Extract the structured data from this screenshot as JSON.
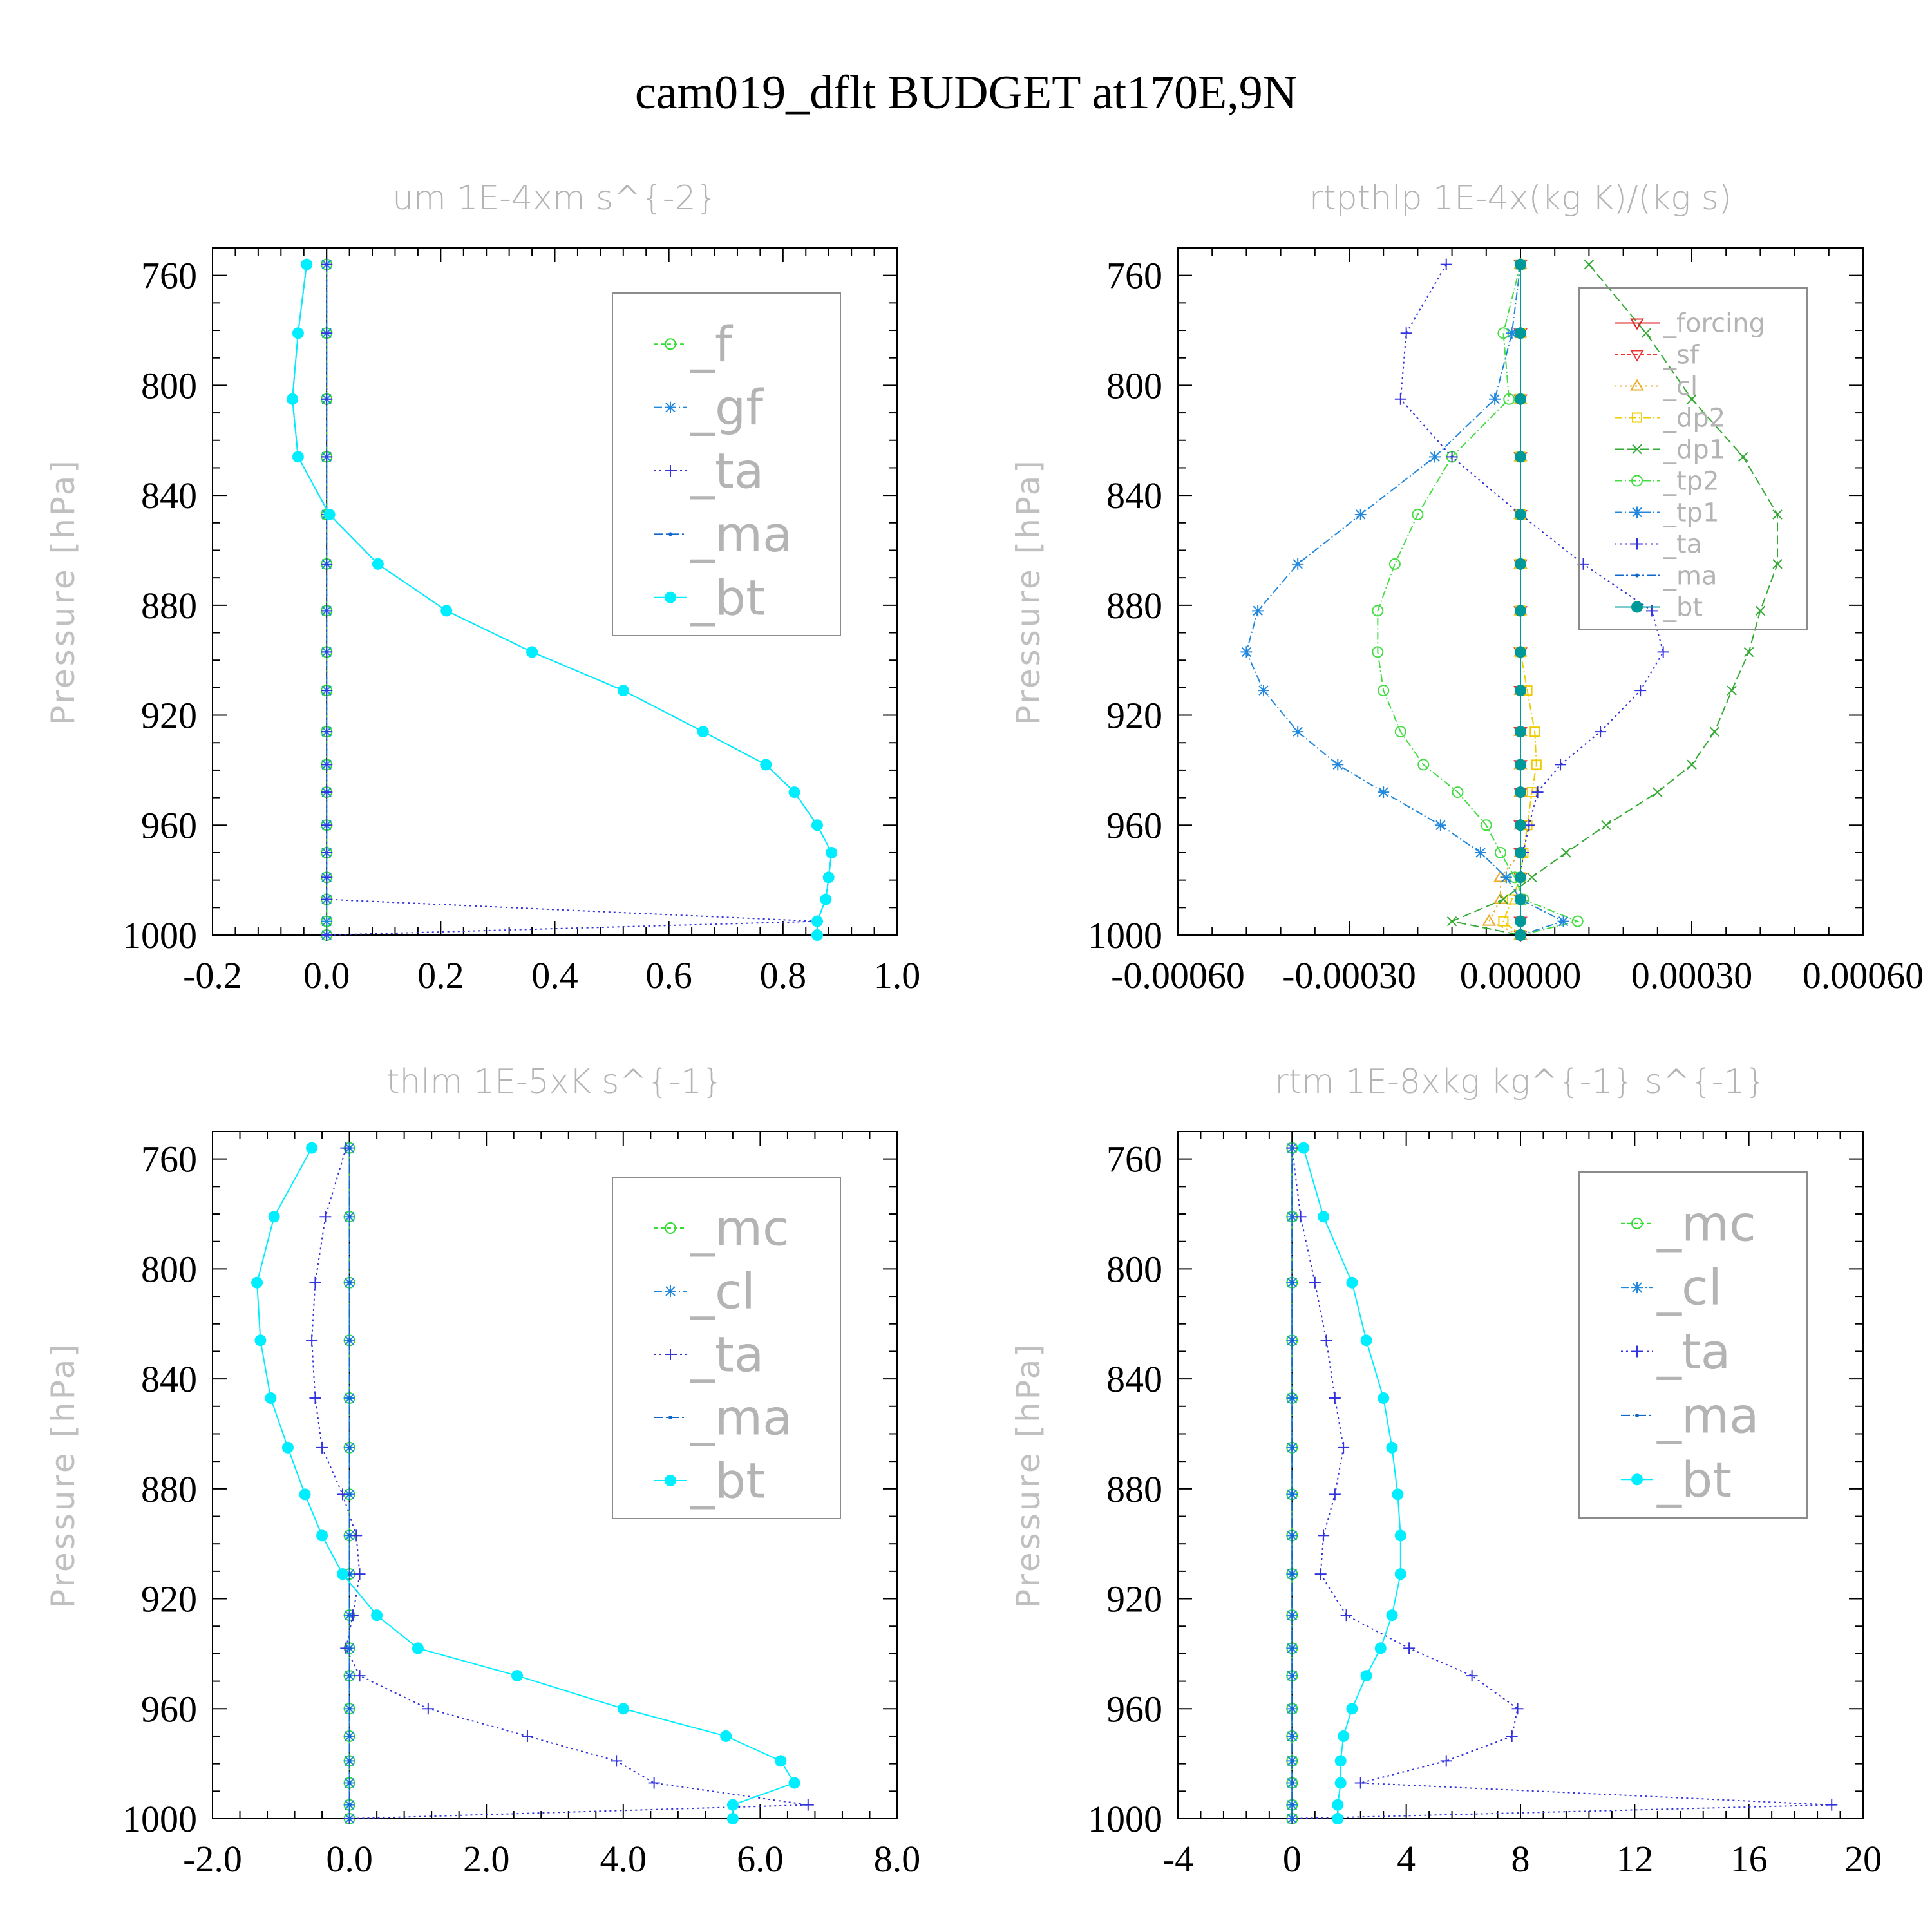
{
  "title": "cam019_dflt  BUDGET at170E,9N",
  "chart_data": [
    {
      "type": "line",
      "title": "um   1E-4xm s^{-2}",
      "ylabel": "Pressure [hPa]",
      "ylim": [
        1000,
        750
      ],
      "yticks": [
        760,
        800,
        840,
        880,
        920,
        960,
        1000
      ],
      "xlim": [
        -0.2,
        1.0
      ],
      "xticks": [
        -0.2,
        0.0,
        0.2,
        0.4,
        0.6,
        0.8,
        1.0
      ],
      "xtick_labels": [
        "-0.2",
        "0.0",
        "0.2",
        "0.4",
        "0.6",
        "0.8",
        "1.0"
      ],
      "grid": false,
      "legend_position": "upper-right",
      "legend_font": "large",
      "y": [
        756,
        781,
        805,
        826,
        847,
        865,
        882,
        897,
        911,
        926,
        938,
        948,
        960,
        970,
        979,
        987,
        995,
        1000
      ],
      "series": [
        {
          "name": "_f",
          "color": "#33dd33",
          "marker": "circle-open",
          "dash": "6,4",
          "values": [
            0,
            0,
            0,
            0,
            0,
            0,
            0,
            0,
            0,
            0,
            0,
            0,
            0,
            0,
            0,
            0,
            0,
            0
          ]
        },
        {
          "name": "_gf",
          "color": "#2288dd",
          "marker": "star",
          "dash": "12,4,2,4",
          "values": [
            0,
            0,
            0,
            0,
            0,
            0,
            0,
            0,
            0,
            0,
            0,
            0,
            0,
            0,
            0,
            0,
            0,
            0
          ]
        },
        {
          "name": "_ta",
          "color": "#3333dd",
          "marker": "plus",
          "dash": "3,5",
          "values": [
            0,
            0,
            0,
            0,
            0,
            0,
            0,
            0,
            0,
            0,
            0,
            0,
            0,
            0,
            0,
            0,
            0.86,
            0
          ]
        },
        {
          "name": "_ma",
          "color": "#1166cc",
          "marker": "dot",
          "dash": "14,4,3,4",
          "values": [
            -0.035,
            -0.05,
            -0.06,
            -0.05,
            0.005,
            0.09,
            0.21,
            0.36,
            0.52,
            0.66,
            0.77,
            0.82,
            0.86,
            0.885,
            0.88,
            0.875,
            0.86,
            0.86
          ]
        },
        {
          "name": "_bt",
          "color": "#00eeff",
          "marker": "dot-filled",
          "dash": "",
          "values": [
            -0.035,
            -0.05,
            -0.06,
            -0.05,
            0.005,
            0.09,
            0.21,
            0.36,
            0.52,
            0.66,
            0.77,
            0.82,
            0.86,
            0.885,
            0.88,
            0.875,
            0.86,
            0.86
          ]
        }
      ]
    },
    {
      "type": "line",
      "title": "rtpthlp   1E-4x(kg K)/(kg s)",
      "ylabel": "Pressure [hPa]",
      "ylim": [
        1000,
        750
      ],
      "yticks": [
        760,
        800,
        840,
        880,
        920,
        960,
        1000
      ],
      "xlim": [
        -0.0006,
        0.0006
      ],
      "xticks": [
        -0.0006,
        -0.0003,
        0.0,
        0.0003,
        0.0006
      ],
      "xtick_labels": [
        "-0.00060",
        "-0.00030",
        "0.00000",
        "0.00030",
        "0.00060"
      ],
      "grid": false,
      "legend_position": "upper-right",
      "legend_font": "small",
      "y": [
        756,
        781,
        805,
        826,
        847,
        865,
        882,
        897,
        911,
        926,
        938,
        948,
        960,
        970,
        979,
        987,
        995,
        1000
      ],
      "series": [
        {
          "name": "_forcing",
          "color": "#dd2222",
          "marker": "tri-down",
          "dash": "",
          "values": [
            0,
            0,
            0,
            0,
            0,
            0,
            0,
            0,
            0,
            0,
            0,
            0,
            0,
            0,
            0,
            0,
            0,
            0
          ]
        },
        {
          "name": "_sf",
          "color": "#ee3333",
          "marker": "tri-down",
          "dash": "6,4",
          "values": [
            0,
            0,
            0,
            0,
            0,
            0,
            0,
            0,
            0,
            0,
            0,
            0,
            0,
            0,
            0,
            0,
            0,
            0
          ]
        },
        {
          "name": "_cl",
          "color": "#eeaa22",
          "marker": "tri-up",
          "dash": "3,5",
          "values": [
            0,
            0,
            0,
            0,
            0,
            0,
            0,
            0,
            0,
            0,
            0,
            0,
            0,
            0,
            -3.5e-05,
            -3.5e-05,
            -5.5e-05,
            0
          ]
        },
        {
          "name": "_dp2",
          "color": "#eecc00",
          "marker": "square",
          "dash": "12,4,2,4",
          "values": [
            0,
            0,
            0,
            0,
            0,
            0,
            0,
            0,
            1.2e-05,
            2.5e-05,
            2.8e-05,
            2e-05,
            1.2e-05,
            5e-06,
            0,
            -1.5e-05,
            -3e-05,
            0
          ]
        },
        {
          "name": "_dp1",
          "color": "#33aa33",
          "marker": "x",
          "dash": "14,6",
          "values": [
            0.00012,
            0.00022,
            0.0003,
            0.00039,
            0.00045,
            0.00045,
            0.00042,
            0.0004,
            0.00037,
            0.00034,
            0.0003,
            0.00024,
            0.00015,
            8e-05,
            2e-05,
            -3e-05,
            -0.00012,
            0
          ]
        },
        {
          "name": "_tp2",
          "color": "#44dd44",
          "marker": "circle-open",
          "dash": "12,4,2,4",
          "values": [
            0,
            -3e-05,
            -2e-05,
            -0.00012,
            -0.00018,
            -0.00022,
            -0.00025,
            -0.00025,
            -0.00024,
            -0.00021,
            -0.00017,
            -0.00011,
            -6e-05,
            -3.5e-05,
            -1e-05,
            5e-06,
            0.0001,
            0
          ]
        },
        {
          "name": "_tp1",
          "color": "#2288dd",
          "marker": "star",
          "dash": "12,4,2,4",
          "values": [
            0,
            -1.5e-05,
            -4.5e-05,
            -0.00015,
            -0.00028,
            -0.00039,
            -0.00046,
            -0.00048,
            -0.00045,
            -0.00039,
            -0.00032,
            -0.00024,
            -0.00014,
            -7e-05,
            -2.5e-05,
            0,
            7.5e-05,
            0
          ]
        },
        {
          "name": "_ta",
          "color": "#3333dd",
          "marker": "plus",
          "dash": "3,5",
          "values": [
            -0.00013,
            -0.0002,
            -0.00021,
            -0.00012,
            0,
            0.00011,
            0.00023,
            0.00025,
            0.00021,
            0.00014,
            7e-05,
            3e-05,
            1.5e-05,
            5e-06,
            0,
            0,
            0,
            0
          ]
        },
        {
          "name": "_ma",
          "color": "#1166cc",
          "marker": "dot",
          "dash": "14,4,3,4",
          "values": [
            0,
            0,
            0,
            0,
            0,
            0,
            0,
            0,
            0,
            0,
            0,
            0,
            0,
            0,
            0,
            0,
            0,
            0
          ]
        },
        {
          "name": "_bt",
          "color": "#009999",
          "marker": "dot-filled",
          "dash": "",
          "values": [
            0,
            0,
            0,
            0,
            0,
            0,
            0,
            0,
            0,
            0,
            0,
            0,
            0,
            0,
            0,
            0,
            0,
            0
          ]
        }
      ]
    },
    {
      "type": "line",
      "title": "thlm   1E-5xK s^{-1}",
      "ylabel": "Pressure [hPa]",
      "ylim": [
        1000,
        750
      ],
      "yticks": [
        760,
        800,
        840,
        880,
        920,
        960,
        1000
      ],
      "xlim": [
        -2.0,
        8.0
      ],
      "xticks": [
        -2,
        0,
        2,
        4,
        6,
        8
      ],
      "xtick_labels": [
        "-2.0",
        "0.0",
        "2.0",
        "4.0",
        "6.0",
        "8.0"
      ],
      "grid": false,
      "legend_position": "upper-right",
      "legend_font": "large",
      "y": [
        756,
        781,
        805,
        826,
        847,
        865,
        882,
        897,
        911,
        926,
        938,
        948,
        960,
        970,
        979,
        987,
        995,
        1000
      ],
      "series": [
        {
          "name": "_mc",
          "color": "#33dd33",
          "marker": "circle-open",
          "dash": "6,4",
          "values": [
            0,
            0,
            0,
            0,
            0,
            0,
            0,
            0,
            0,
            0,
            0,
            0,
            0,
            0,
            0,
            0,
            0,
            0
          ]
        },
        {
          "name": "_cl",
          "color": "#2288dd",
          "marker": "star",
          "dash": "12,4,2,4",
          "values": [
            0,
            0,
            0,
            0,
            0,
            0,
            0,
            0,
            0,
            0,
            0,
            0,
            0,
            0,
            0,
            0,
            0,
            0
          ]
        },
        {
          "name": "_ta",
          "color": "#3333dd",
          "marker": "plus",
          "dash": "3,5",
          "values": [
            -0.05,
            -0.35,
            -0.5,
            -0.55,
            -0.5,
            -0.4,
            -0.1,
            0.1,
            0.15,
            0.05,
            -0.05,
            0.15,
            1.15,
            2.6,
            3.9,
            4.45,
            6.7,
            0
          ]
        },
        {
          "name": "_ma",
          "color": "#1166cc",
          "marker": "dot",
          "dash": "14,4,3,4",
          "values": [
            0,
            0,
            0,
            0,
            0,
            0,
            0,
            0,
            0,
            0,
            0,
            0,
            0,
            0,
            0,
            0,
            0,
            0
          ]
        },
        {
          "name": "_bt",
          "color": "#00eeff",
          "marker": "dot-filled",
          "dash": "",
          "values": [
            -0.55,
            -1.1,
            -1.35,
            -1.3,
            -1.15,
            -0.9,
            -0.65,
            -0.4,
            -0.1,
            0.4,
            1.0,
            2.45,
            4.0,
            5.5,
            6.3,
            6.5,
            5.6,
            5.6
          ]
        }
      ]
    },
    {
      "type": "line",
      "title": "rtm   1E-8xkg kg^{-1} s^{-1}",
      "ylabel": "Pressure [hPa]",
      "ylim": [
        1000,
        750
      ],
      "yticks": [
        760,
        800,
        840,
        880,
        920,
        960,
        1000
      ],
      "xlim": [
        -4,
        20
      ],
      "xticks": [
        -4,
        0,
        4,
        8,
        12,
        16,
        20
      ],
      "xtick_labels": [
        "-4",
        "0",
        "4",
        "8",
        "12",
        "16",
        "20"
      ],
      "grid": false,
      "legend_position": "upper-right",
      "legend_font": "large",
      "y": [
        756,
        781,
        805,
        826,
        847,
        865,
        882,
        897,
        911,
        926,
        938,
        948,
        960,
        970,
        979,
        987,
        995,
        1000
      ],
      "series": [
        {
          "name": "_mc",
          "color": "#33dd33",
          "marker": "circle-open",
          "dash": "6,4",
          "values": [
            0,
            0,
            0,
            0,
            0,
            0,
            0,
            0,
            0,
            0,
            0,
            0,
            0,
            0,
            0,
            0,
            0,
            0
          ]
        },
        {
          "name": "_cl",
          "color": "#2288dd",
          "marker": "star",
          "dash": "12,4,2,4",
          "values": [
            0,
            0,
            0,
            0,
            0,
            0,
            0,
            0,
            0,
            0,
            0,
            0,
            0,
            0,
            0,
            0,
            0,
            0
          ]
        },
        {
          "name": "_ta",
          "color": "#3333dd",
          "marker": "plus",
          "dash": "3,5",
          "values": [
            0,
            0.3,
            0.8,
            1.2,
            1.5,
            1.8,
            1.5,
            1.1,
            1.0,
            1.9,
            4.1,
            6.3,
            7.9,
            7.7,
            5.4,
            2.4,
            18.9,
            0
          ]
        },
        {
          "name": "_ma",
          "color": "#1166cc",
          "marker": "dot",
          "dash": "14,4,3,4",
          "values": [
            0,
            0,
            0,
            0,
            0,
            0,
            0,
            0,
            0,
            0,
            0,
            0,
            0,
            0,
            0,
            0,
            0,
            0
          ]
        },
        {
          "name": "_bt",
          "color": "#00eeff",
          "marker": "dot-filled",
          "dash": "",
          "values": [
            0.4,
            1.1,
            2.1,
            2.6,
            3.2,
            3.5,
            3.7,
            3.8,
            3.8,
            3.5,
            3.1,
            2.6,
            2.1,
            1.8,
            1.7,
            1.7,
            1.6,
            1.6
          ]
        }
      ]
    }
  ]
}
